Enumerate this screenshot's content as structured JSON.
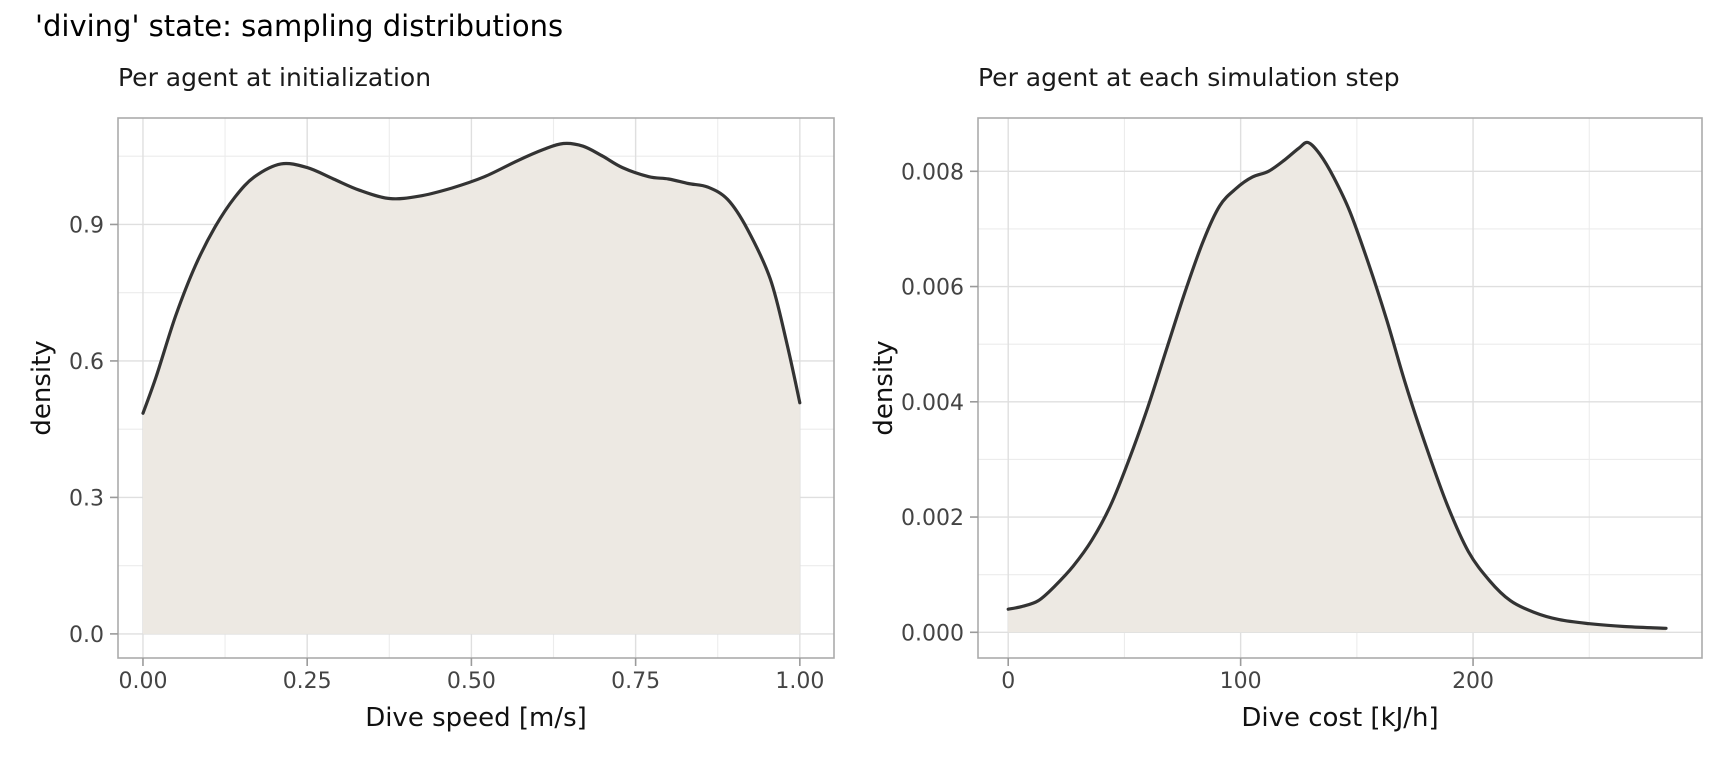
{
  "page": {
    "title": "'diving' state: sampling distributions",
    "background": "#ffffff"
  },
  "chart_data": [
    {
      "type": "area",
      "title": "Per agent at initialization",
      "xlabel": "Dive speed [m/s]",
      "ylabel": "density",
      "legend": "none",
      "grid": true,
      "fill_color": "#EDE9E3",
      "line_color": "#333333",
      "major_grid_color": "#DFDFDF",
      "minor_grid_color": "#ECECEC",
      "border_color": "#ABABAB",
      "tick_color": "#9B9B9B",
      "xlim": [
        -0.038,
        1.052
      ],
      "ylim": [
        -0.053,
        1.134
      ],
      "x_ticks": {
        "values": [
          0,
          0.25,
          0.5,
          0.75,
          1.0
        ],
        "labels": [
          "0.00",
          "0.25",
          "0.50",
          "0.75",
          "1.00"
        ],
        "minor": [
          0.125,
          0.375,
          0.625,
          0.875
        ]
      },
      "y_ticks": {
        "values": [
          0,
          0.3,
          0.6,
          0.9
        ],
        "labels": [
          "0.0",
          "0.3",
          "0.6",
          "0.9"
        ],
        "minor": [
          0.15,
          0.45,
          0.75,
          1.05
        ]
      },
      "baseline": 0,
      "series": [
        {
          "name": "density",
          "x": [
            0.0,
            0.02,
            0.05,
            0.08,
            0.11,
            0.14,
            0.17,
            0.21,
            0.25,
            0.29,
            0.33,
            0.375,
            0.42,
            0.47,
            0.52,
            0.57,
            0.61,
            0.64,
            0.67,
            0.7,
            0.73,
            0.77,
            0.8,
            0.83,
            0.86,
            0.89,
            0.92,
            0.955,
            0.98,
            1.0
          ],
          "y": [
            0.485,
            0.565,
            0.7,
            0.81,
            0.895,
            0.96,
            1.005,
            1.033,
            1.025,
            1.0,
            0.975,
            0.957,
            0.962,
            0.98,
            1.005,
            1.04,
            1.065,
            1.078,
            1.072,
            1.05,
            1.025,
            1.005,
            1.0,
            0.99,
            0.982,
            0.955,
            0.89,
            0.78,
            0.64,
            0.508
          ]
        }
      ]
    },
    {
      "type": "area",
      "title": "Per agent at each simulation step",
      "xlabel": "Dive cost [kJ/h]",
      "ylabel": "density",
      "legend": "none",
      "grid": true,
      "fill_color": "#EDE9E3",
      "line_color": "#333333",
      "major_grid_color": "#DFDFDF",
      "minor_grid_color": "#ECECEC",
      "border_color": "#ABABAB",
      "tick_color": "#9B9B9B",
      "xlim": [
        -13,
        298.5
      ],
      "ylim": [
        -0.000446,
        0.008925
      ],
      "x_ticks": {
        "values": [
          0,
          100,
          200
        ],
        "labels": [
          "0",
          "100",
          "200"
        ],
        "minor": [
          50,
          150,
          250
        ]
      },
      "y_ticks": {
        "values": [
          0,
          0.002,
          0.004,
          0.006,
          0.008
        ],
        "labels": [
          "0.000",
          "0.002",
          "0.004",
          "0.006",
          "0.008"
        ],
        "minor": [
          0.001,
          0.003,
          0.005,
          0.007
        ]
      },
      "baseline": 0,
      "series": [
        {
          "name": "density",
          "x": [
            0,
            6,
            13,
            20,
            28,
            36,
            44,
            52,
            60,
            68,
            76,
            84,
            91,
            98,
            105,
            112,
            119,
            125,
            129,
            134,
            140,
            147,
            155,
            163,
            171,
            180,
            189,
            198,
            207,
            216,
            226,
            237,
            250,
            265,
            283
          ],
          "y": [
            0.0004,
            0.00045,
            0.00055,
            0.0008,
            0.00115,
            0.0016,
            0.0022,
            0.003,
            0.0039,
            0.0049,
            0.0059,
            0.0068,
            0.0074,
            0.0077,
            0.0079,
            0.008,
            0.0082,
            0.0084,
            0.0085,
            0.0083,
            0.0079,
            0.0073,
            0.0064,
            0.0054,
            0.0043,
            0.0032,
            0.0022,
            0.0014,
            0.0009,
            0.00055,
            0.00035,
            0.00022,
            0.00015,
            0.0001,
            7e-05
          ]
        }
      ]
    }
  ]
}
